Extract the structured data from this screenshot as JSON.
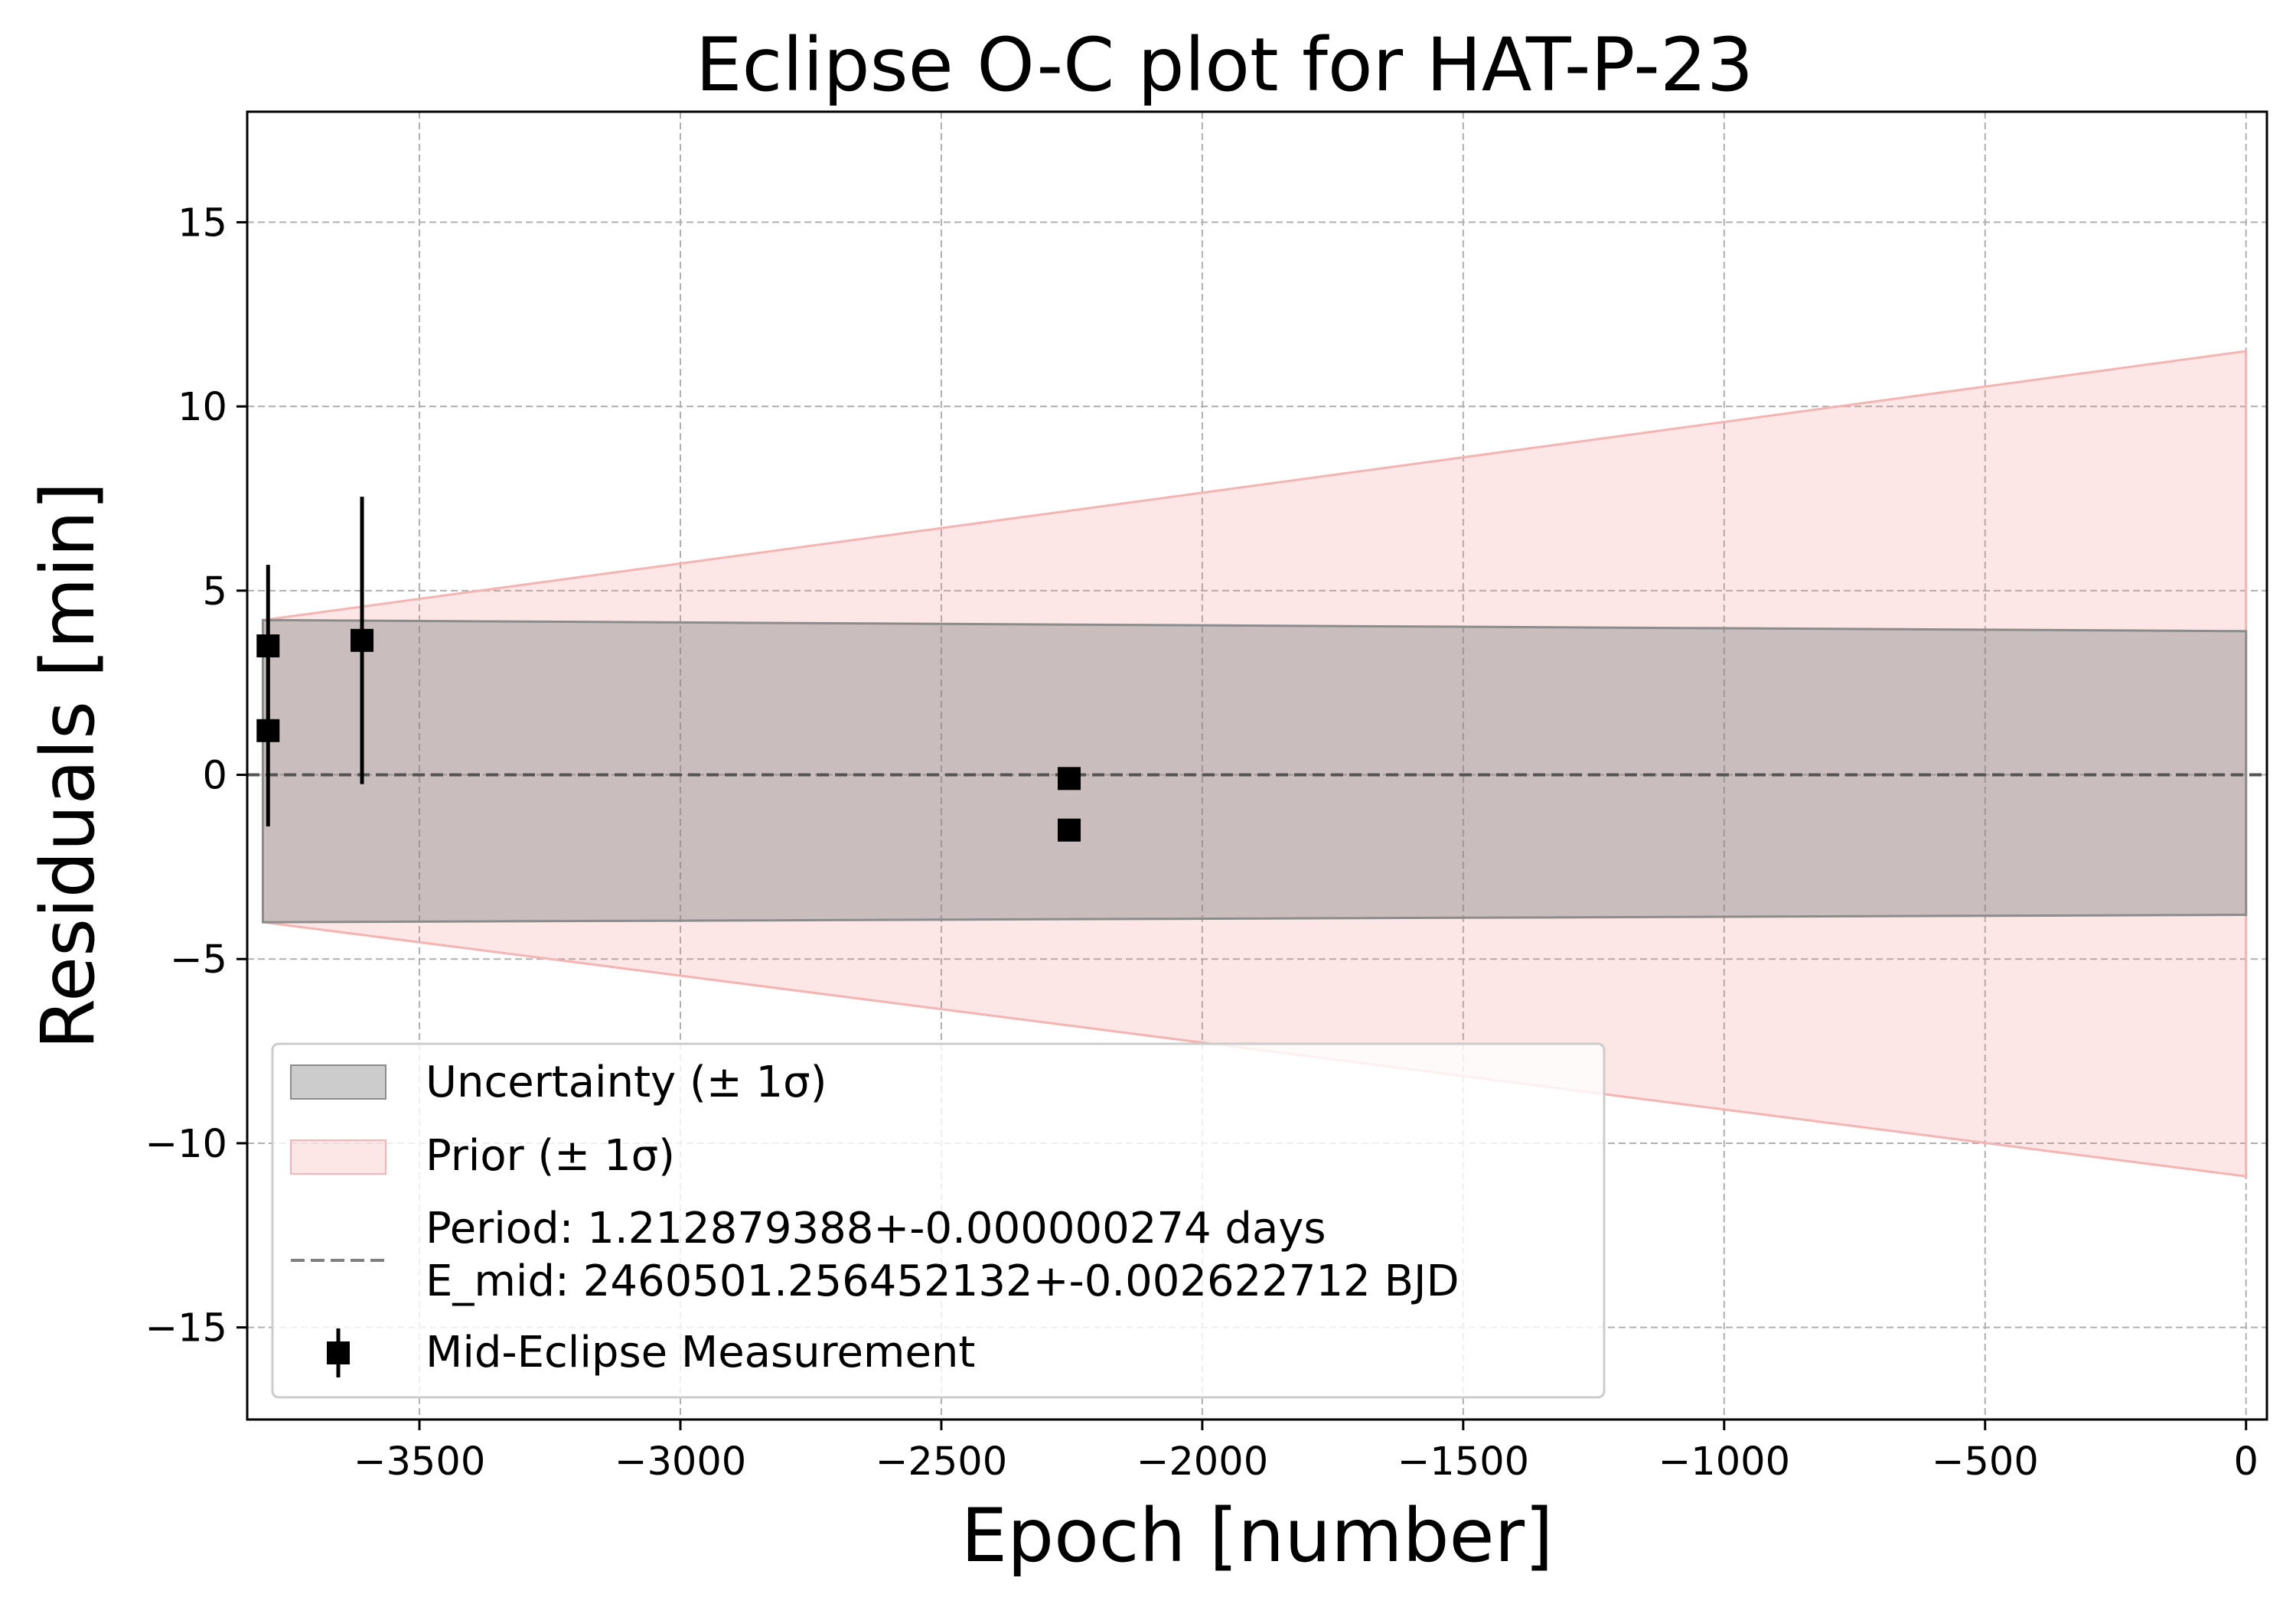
{
  "chart_data": {
    "type": "scatter",
    "title": "Eclipse O-C plot for HAT-P-23",
    "xlabel": "Epoch [number]",
    "ylabel": "Residuals [min]",
    "xlim": [
      -3830,
      40
    ],
    "ylim": [
      -17.5,
      18
    ],
    "x_ticks": [
      -3500,
      -3000,
      -2500,
      -2000,
      -1500,
      -1000,
      -500,
      0
    ],
    "x_tick_labels": [
      "−3500",
      "−3000",
      "−2500",
      "−2000",
      "−1500",
      "−1000",
      "−500",
      "0"
    ],
    "y_ticks": [
      15,
      10,
      5,
      0,
      -5,
      -10,
      -15
    ],
    "y_tick_labels": [
      "15",
      "10",
      "5",
      "0",
      "−5",
      "−10",
      "−15"
    ],
    "grid": true,
    "legend_position": "lower-left",
    "series": [
      {
        "name": "Mid-Eclipse Measurement",
        "kind": "errorbar",
        "color": "#000000",
        "marker": "square",
        "points": [
          {
            "x": -3790,
            "y": 3.5,
            "err": 2.2
          },
          {
            "x": -3790,
            "y": 1.2,
            "err": 2.6
          },
          {
            "x": -3610,
            "y": 3.65,
            "err": 3.9
          },
          {
            "x": -2255,
            "y": -0.1,
            "err": 0.15
          },
          {
            "x": -2255,
            "y": -1.5,
            "err": 0.25
          }
        ]
      },
      {
        "name": "Uncertainty (± 1σ)",
        "kind": "band",
        "color": "#808080",
        "opacity": 0.4,
        "edge_color": "#8c8c8c",
        "x": [
          -3800,
          0
        ],
        "upper": [
          4.2,
          3.9
        ],
        "lower": [
          -4.0,
          -3.8
        ]
      },
      {
        "name": "Prior (± 1σ)",
        "kind": "band",
        "color": "#f08080",
        "opacity": 0.2,
        "edge_color": "#f4b4b4",
        "x": [
          -3800,
          0
        ],
        "upper": [
          4.2,
          11.5
        ],
        "lower": [
          -4.0,
          -10.9
        ]
      },
      {
        "name": "Period: 1.212879388+-0.000000274 days\nE_mid: 2460501.256452132+-0.002622712 BJD",
        "kind": "hline",
        "y": 0,
        "color": "#808080",
        "dashed": true
      }
    ],
    "legend": [
      {
        "key": "band-gray",
        "label": "Uncertainty (± 1σ)"
      },
      {
        "key": "band-red",
        "label": "Prior (± 1σ)"
      },
      {
        "key": "dashed-line",
        "label_lines": [
          "Period: 1.212879388+-0.000000274 days",
          "E_mid: 2460501.256452132+-0.002622712 BJD"
        ]
      },
      {
        "key": "errorbar-marker",
        "label": "Mid-Eclipse Measurement"
      }
    ]
  }
}
